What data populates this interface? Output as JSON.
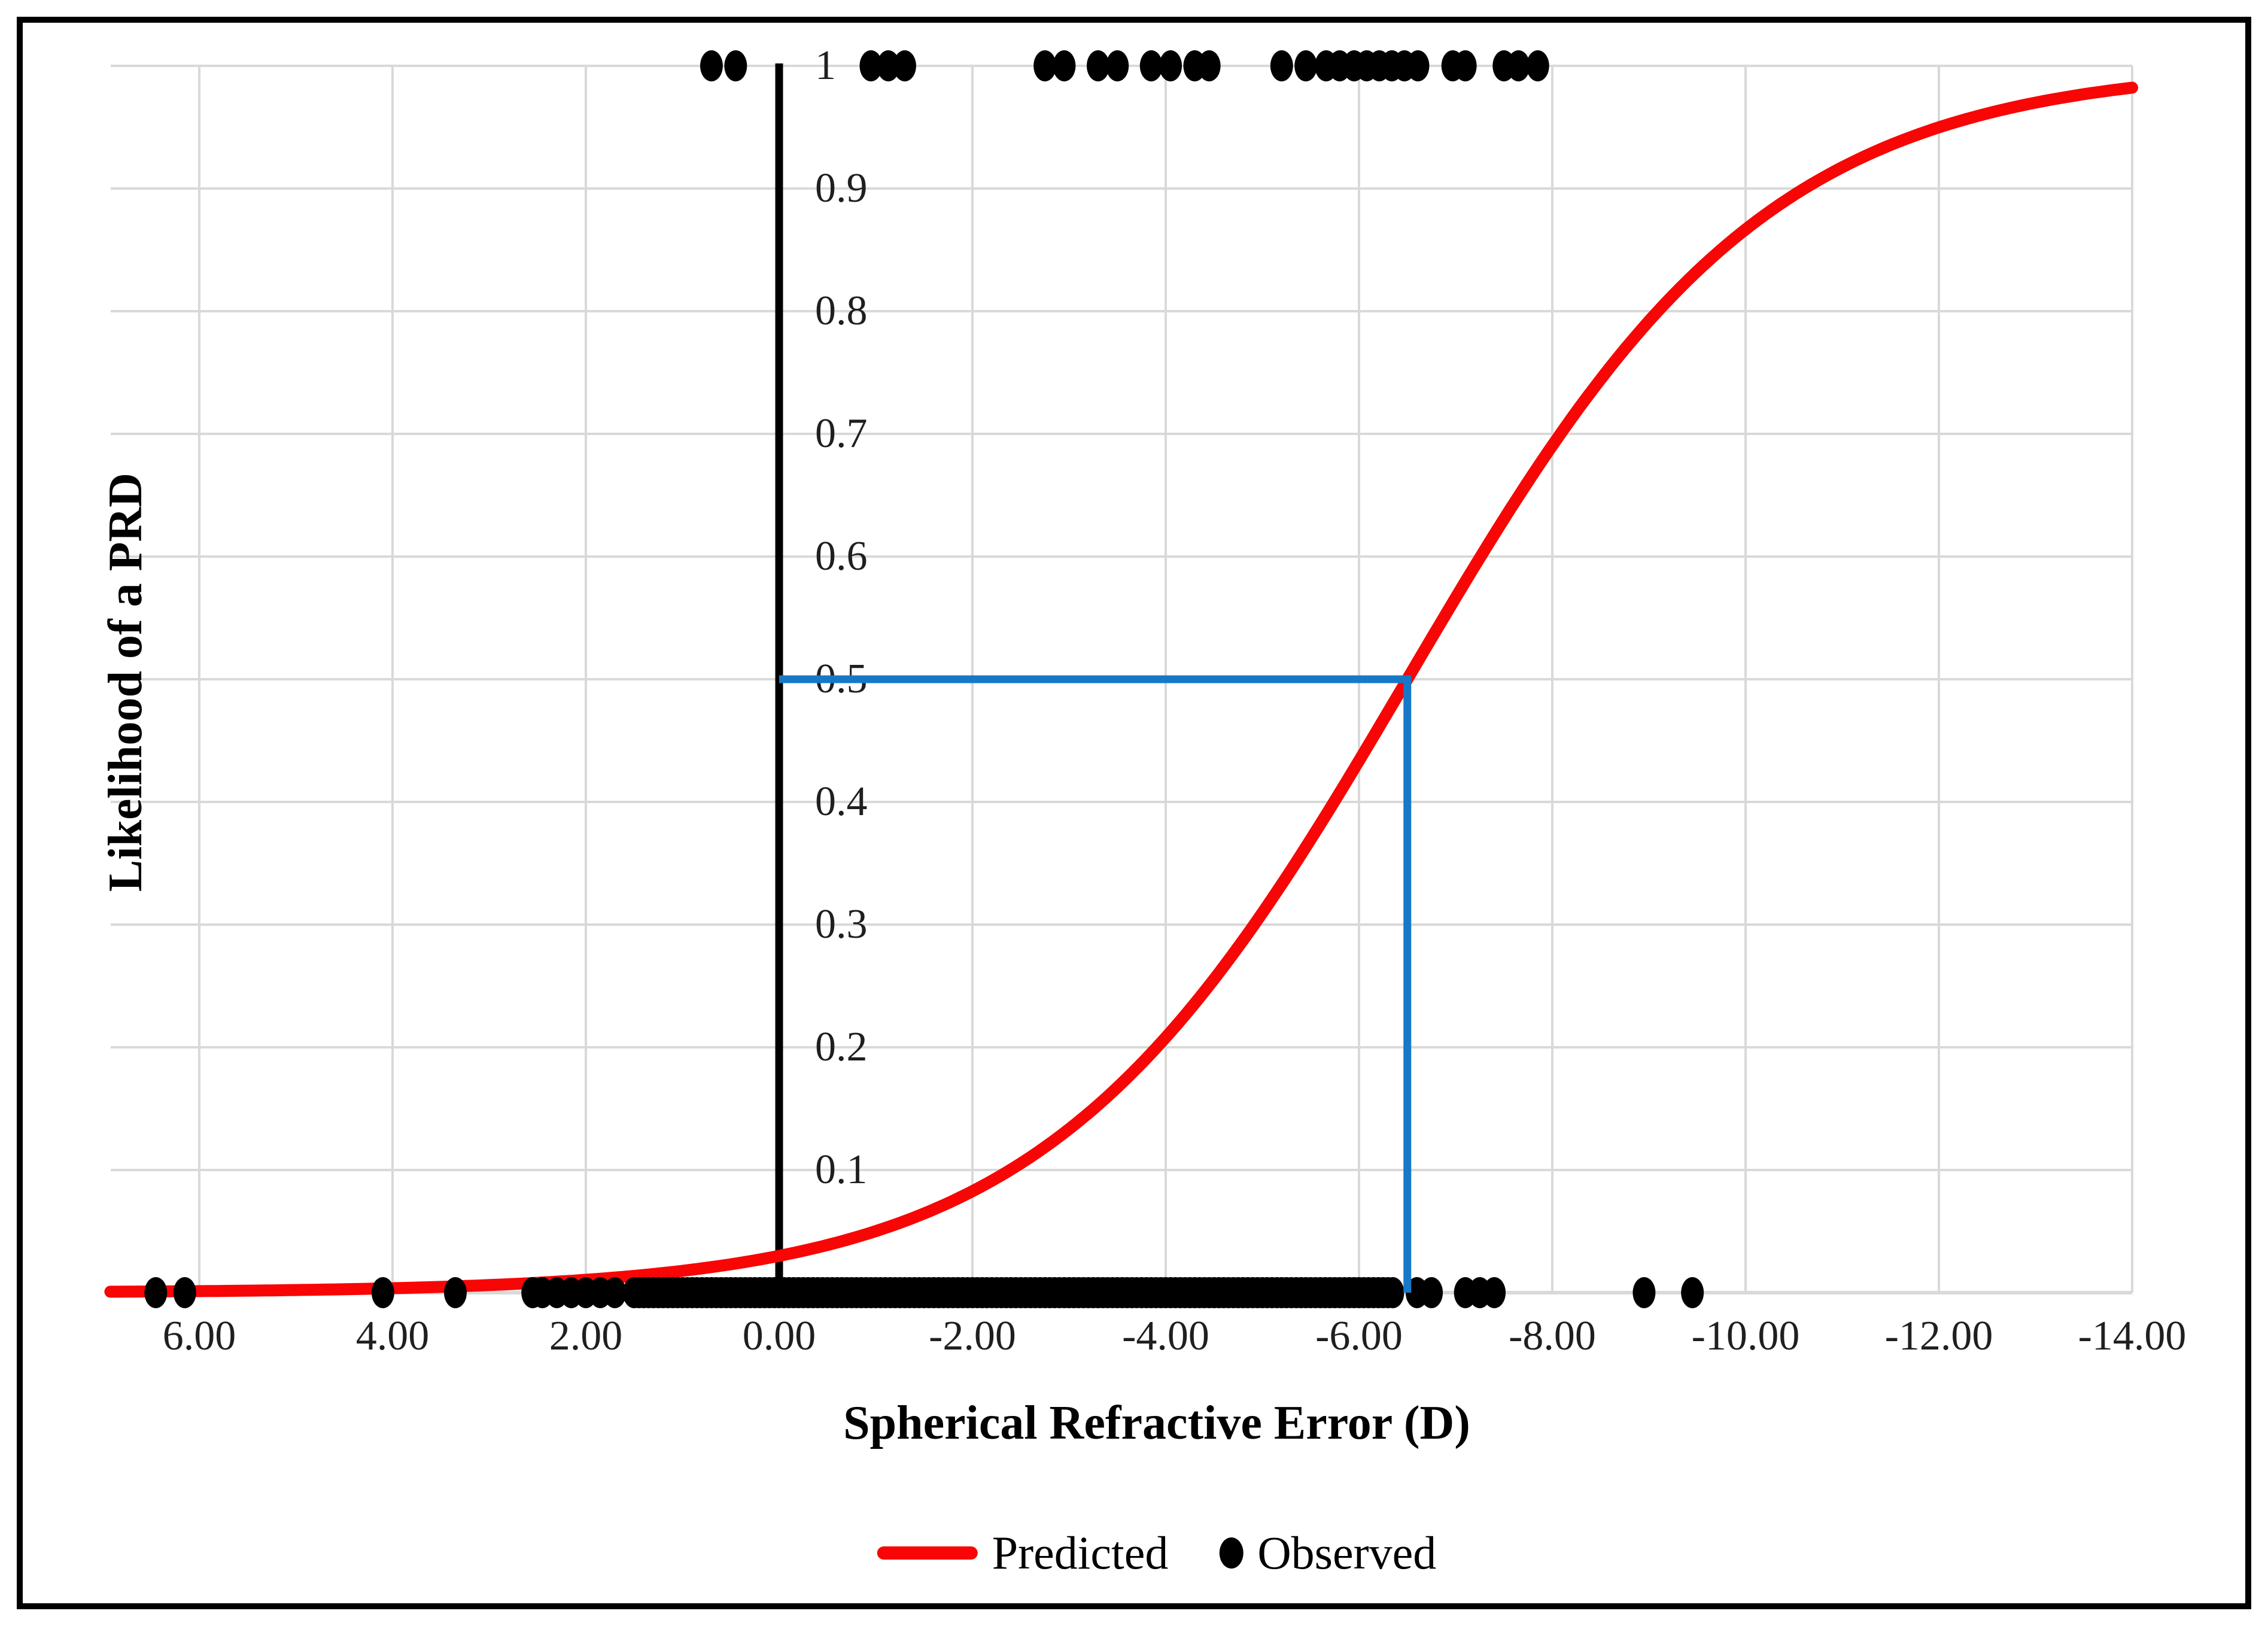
{
  "figure": {
    "background": "#FFFFFF",
    "frame_color": "#000000"
  },
  "colors": {
    "predicted_red": "#F80505",
    "observed_black": "#000000",
    "reference_blue": "#1878C8",
    "gridline_gray": "#D9D9D9",
    "axis_black": "#000000",
    "tick_text": "#1F1F1F"
  },
  "legend": {
    "items": [
      {
        "label": "Predicted",
        "marker": "red-line-marker",
        "color": "#F80505"
      },
      {
        "label": "Observed",
        "marker": "black-dot-marker",
        "color": "#000000"
      }
    ]
  },
  "chart_data": {
    "type": "line+scatter",
    "title": "",
    "xlabel": "Spherical Refractive Error (D)",
    "ylabel": "Likelihood of a PRD",
    "x_axis": {
      "reversed": true,
      "plot_range": [
        6.92,
        -14.0
      ],
      "ticks": [
        {
          "value": 6,
          "label": "6.00"
        },
        {
          "value": 4,
          "label": "4.00"
        },
        {
          "value": 2,
          "label": "2.00"
        },
        {
          "value": 0,
          "label": "0.00"
        },
        {
          "value": -2,
          "label": "-2.00"
        },
        {
          "value": -4,
          "label": "-4.00"
        },
        {
          "value": -6,
          "label": "-6.00"
        },
        {
          "value": -8,
          "label": "-8.00"
        },
        {
          "value": -10,
          "label": "-10.00"
        },
        {
          "value": -12,
          "label": "-12.00"
        },
        {
          "value": -14,
          "label": "-14.00"
        }
      ]
    },
    "y_axis": {
      "range": [
        0,
        1
      ],
      "gridline_step": 0.1,
      "ticks": [
        {
          "value": 1,
          "label": "1"
        },
        {
          "value": 0.9,
          "label": "0.9"
        },
        {
          "value": 0.8,
          "label": "0.8"
        },
        {
          "value": 0.7,
          "label": "0.7"
        },
        {
          "value": 0.6,
          "label": "0.6"
        },
        {
          "value": 0.5,
          "label": "0.5"
        },
        {
          "value": 0.4,
          "label": "0.4"
        },
        {
          "value": 0.3,
          "label": "0.3"
        },
        {
          "value": 0.2,
          "label": "0.2"
        },
        {
          "value": 0.1,
          "label": "0.1"
        }
      ]
    },
    "series": [
      {
        "name": "Predicted",
        "type": "line",
        "color": "#F80505",
        "model": "logistic",
        "midpoint": -6.5,
        "scale": 1.87,
        "x_from": 6.92,
        "x_to": -14.0,
        "sample_points": [
          {
            "x": 6,
            "y": 0.001
          },
          {
            "x": 5,
            "y": 0.002
          },
          {
            "x": 4,
            "y": 0.004
          },
          {
            "x": 3,
            "y": 0.006
          },
          {
            "x": 2,
            "y": 0.011
          },
          {
            "x": 1,
            "y": 0.018
          },
          {
            "x": 0,
            "y": 0.03
          },
          {
            "x": -1,
            "y": 0.05
          },
          {
            "x": -2,
            "y": 0.083
          },
          {
            "x": -3,
            "y": 0.133
          },
          {
            "x": -4,
            "y": 0.208
          },
          {
            "x": -5,
            "y": 0.31
          },
          {
            "x": -6,
            "y": 0.434
          },
          {
            "x": -6.5,
            "y": 0.5
          },
          {
            "x": -7,
            "y": 0.567
          },
          {
            "x": -8,
            "y": 0.69
          },
          {
            "x": -9,
            "y": 0.792
          },
          {
            "x": -10,
            "y": 0.867
          },
          {
            "x": -11,
            "y": 0.917
          },
          {
            "x": -12,
            "y": 0.95
          },
          {
            "x": -13,
            "y": 0.97
          },
          {
            "x": -14,
            "y": 0.982
          }
        ]
      },
      {
        "name": "Observed",
        "type": "scatter",
        "color": "#000000",
        "y1_points_x": [
          0.7,
          0.45,
          -0.95,
          -1.13,
          -1.3,
          -2.75,
          -2.95,
          -3.3,
          -3.5,
          -3.85,
          -4.05,
          -4.3,
          -4.45,
          -5.2,
          -5.45,
          -5.66,
          -5.8,
          -5.95,
          -6.08,
          -6.21,
          -6.34,
          -6.47,
          -6.61,
          -6.97,
          -7.1,
          -7.5,
          -7.65,
          -7.85
        ],
        "y0_points_x": [
          6.45,
          6.15,
          4.1,
          3.35,
          2.55,
          2.45,
          2.3,
          2.15,
          2.0,
          1.85,
          1.7,
          -6.6,
          -6.75,
          -7.1,
          -7.25,
          -7.4,
          -8.95,
          -9.45
        ],
        "y0_dense_band": {
          "from": 1.5,
          "to": -6.35,
          "step": 0.05
        }
      }
    ],
    "reference_line": {
      "color": "#1878C8",
      "y": 0.5,
      "from_x": 0,
      "to_x": -6.5,
      "drops_to_y": 0
    }
  }
}
